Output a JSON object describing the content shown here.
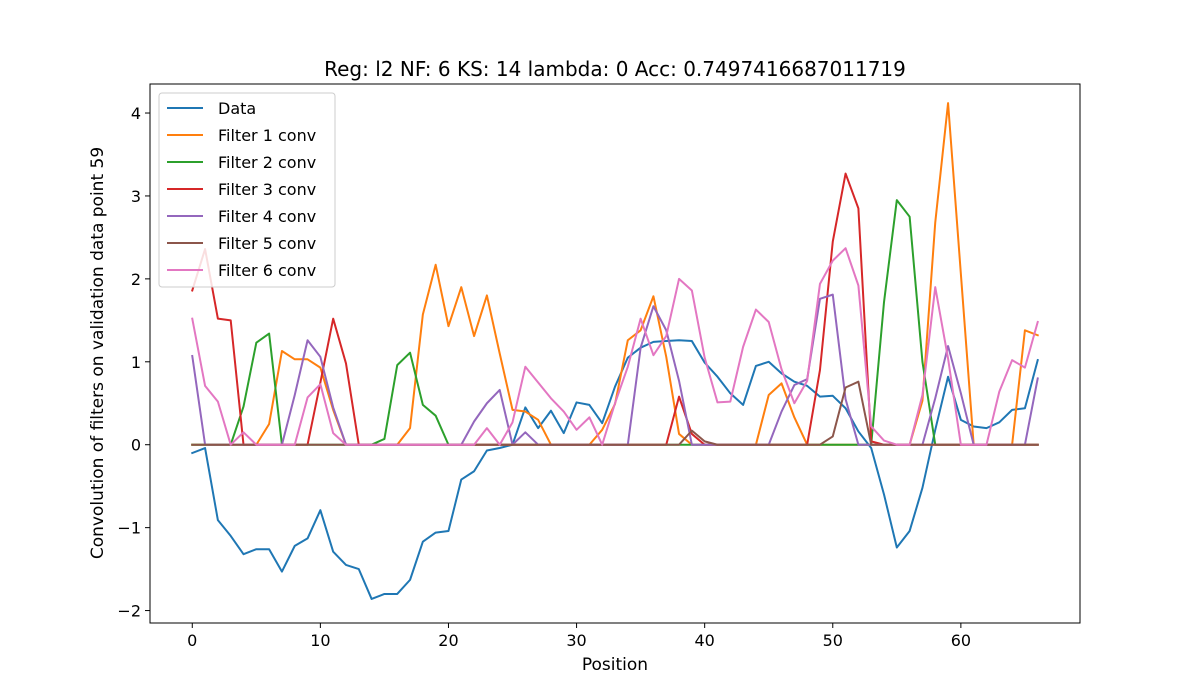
{
  "chart_data": {
    "type": "line",
    "title": "Reg: l2  NF: 6  KS: 14  lambda: 0 Acc: 0.7497416687011719",
    "xlabel": "Position",
    "ylabel": "Convolution of filters on validation data point 59",
    "xlim": [
      -3.3,
      69.3
    ],
    "ylim": [
      -2.15,
      4.35
    ],
    "xticks": [
      0,
      10,
      20,
      30,
      40,
      50,
      60
    ],
    "yticks": [
      -2,
      -1,
      0,
      1,
      2,
      3,
      4
    ],
    "ytick_labels": [
      "−2",
      "−1",
      "0",
      "1",
      "2",
      "3",
      "4"
    ],
    "grid": false,
    "legend_position": "top-left",
    "series": [
      {
        "name": "Data",
        "color": "#1f77b4",
        "values": [
          -0.1,
          -0.04,
          -0.91,
          -1.1,
          -1.32,
          -1.26,
          -1.26,
          -1.53,
          -1.22,
          -1.13,
          -0.79,
          -1.29,
          -1.45,
          -1.5,
          -1.86,
          -1.8,
          -1.8,
          -1.63,
          -1.17,
          -1.06,
          -1.04,
          -0.42,
          -0.32,
          -0.07,
          -0.04,
          0.0,
          0.45,
          0.2,
          0.41,
          0.14,
          0.51,
          0.48,
          0.26,
          0.7,
          1.05,
          1.17,
          1.24,
          1.25,
          1.26,
          1.25,
          0.99,
          0.82,
          0.62,
          0.48,
          0.95,
          1.0,
          0.86,
          0.76,
          0.71,
          0.58,
          0.59,
          0.44,
          0.16,
          -0.04,
          -0.6,
          -1.24,
          -1.04,
          -0.52,
          0.18,
          0.82,
          0.3,
          0.22,
          0.2,
          0.27,
          0.42,
          0.44,
          1.02
        ]
      },
      {
        "name": "Filter 1 conv",
        "color": "#ff7f0e",
        "values": [
          0,
          0,
          0,
          0,
          0,
          0,
          0.25,
          1.13,
          1.03,
          1.03,
          0.93,
          0.42,
          0,
          0,
          0,
          0,
          0,
          0.2,
          1.57,
          2.17,
          1.43,
          1.9,
          1.31,
          1.8,
          1.1,
          0.42,
          0.4,
          0.3,
          0,
          0,
          0,
          0,
          0.18,
          0.49,
          1.26,
          1.38,
          1.79,
          1.06,
          0.13,
          0,
          0,
          0,
          0,
          0,
          0,
          0.6,
          0.74,
          0.33,
          0,
          0,
          0,
          0,
          0,
          0,
          0,
          0,
          0,
          0.53,
          2.68,
          4.12,
          2.06,
          0,
          0,
          0,
          0,
          1.38,
          1.32
        ]
      },
      {
        "name": "Filter 2 conv",
        "color": "#2ca02c",
        "values": [
          0,
          0,
          0,
          0,
          0.46,
          1.23,
          1.34,
          0,
          0,
          0,
          0,
          0,
          0,
          0,
          0,
          0.07,
          0.96,
          1.11,
          0.48,
          0.35,
          0,
          0,
          0,
          0,
          0,
          0,
          0,
          0,
          0,
          0,
          0,
          0,
          0,
          0,
          0,
          0,
          0,
          0,
          0,
          0,
          0,
          0,
          0,
          0,
          0,
          0,
          0,
          0,
          0,
          0,
          0,
          0,
          0,
          0,
          1.72,
          2.95,
          2.75,
          1.0,
          0,
          0,
          0,
          0,
          0,
          0,
          0,
          0,
          0
        ]
      },
      {
        "name": "Filter 3 conv",
        "color": "#d62728",
        "values": [
          1.86,
          2.36,
          1.52,
          1.5,
          0,
          0,
          0,
          0,
          0,
          0,
          0.75,
          1.52,
          0.98,
          0,
          0,
          0,
          0,
          0,
          0,
          0,
          0,
          0,
          0,
          0,
          0,
          0,
          0,
          0,
          0,
          0,
          0,
          0,
          0,
          0,
          0,
          0,
          0,
          0,
          0.58,
          0.13,
          0,
          0,
          0,
          0,
          0,
          0,
          0,
          0,
          0,
          0.9,
          2.45,
          3.27,
          2.85,
          0.04,
          0,
          0,
          0,
          0,
          0,
          0,
          0,
          0,
          0,
          0,
          0,
          0,
          0
        ]
      },
      {
        "name": "Filter 4 conv",
        "color": "#9467bd",
        "values": [
          1.07,
          0,
          0,
          0,
          0,
          0,
          0,
          0,
          0.6,
          1.26,
          1.06,
          0.45,
          0,
          0,
          0,
          0,
          0,
          0,
          0,
          0,
          0,
          0,
          0.28,
          0.5,
          0.66,
          0,
          0.15,
          0,
          0,
          0,
          0,
          0,
          0,
          0,
          0,
          1.17,
          1.67,
          1.38,
          0.77,
          0,
          0,
          0,
          0,
          0,
          0,
          0,
          0.4,
          0.72,
          0.79,
          1.76,
          1.81,
          0.55,
          0,
          0,
          0,
          0,
          0,
          0,
          0.56,
          1.19,
          0.62,
          0,
          0,
          0,
          0,
          0,
          0.8
        ]
      },
      {
        "name": "Filter 5 conv",
        "color": "#8c564b",
        "values": [
          0,
          0,
          0,
          0,
          0,
          0,
          0,
          0,
          0,
          0,
          0,
          0,
          0,
          0,
          0,
          0,
          0,
          0,
          0,
          0,
          0,
          0,
          0,
          0,
          0,
          0,
          0,
          0,
          0,
          0,
          0,
          0,
          0,
          0,
          0,
          0,
          0,
          0,
          0,
          0.17,
          0.04,
          0,
          0,
          0,
          0,
          0,
          0,
          0,
          0,
          0,
          0.1,
          0.69,
          0.76,
          0,
          0,
          0,
          0,
          0,
          0,
          0,
          0,
          0,
          0,
          0,
          0,
          0,
          0
        ]
      },
      {
        "name": "Filter 6 conv",
        "color": "#e377c2",
        "values": [
          1.52,
          0.71,
          0.52,
          0,
          0.15,
          0,
          0,
          0,
          0,
          0.57,
          0.73,
          0.14,
          0,
          0,
          0,
          0,
          0,
          0,
          0,
          0,
          0,
          0,
          0,
          0.2,
          0,
          0.27,
          0.94,
          0.75,
          0.56,
          0.4,
          0.18,
          0.33,
          0,
          0.5,
          0.94,
          1.52,
          1.08,
          1.31,
          2.0,
          1.86,
          1.05,
          0.51,
          0.52,
          1.18,
          1.63,
          1.48,
          0.91,
          0.5,
          0.77,
          1.94,
          2.22,
          2.37,
          1.92,
          0.22,
          0.05,
          0,
          0,
          0.6,
          1.9,
          1.04,
          0,
          0,
          0,
          0.64,
          1.02,
          0.93,
          1.48
        ]
      }
    ]
  }
}
